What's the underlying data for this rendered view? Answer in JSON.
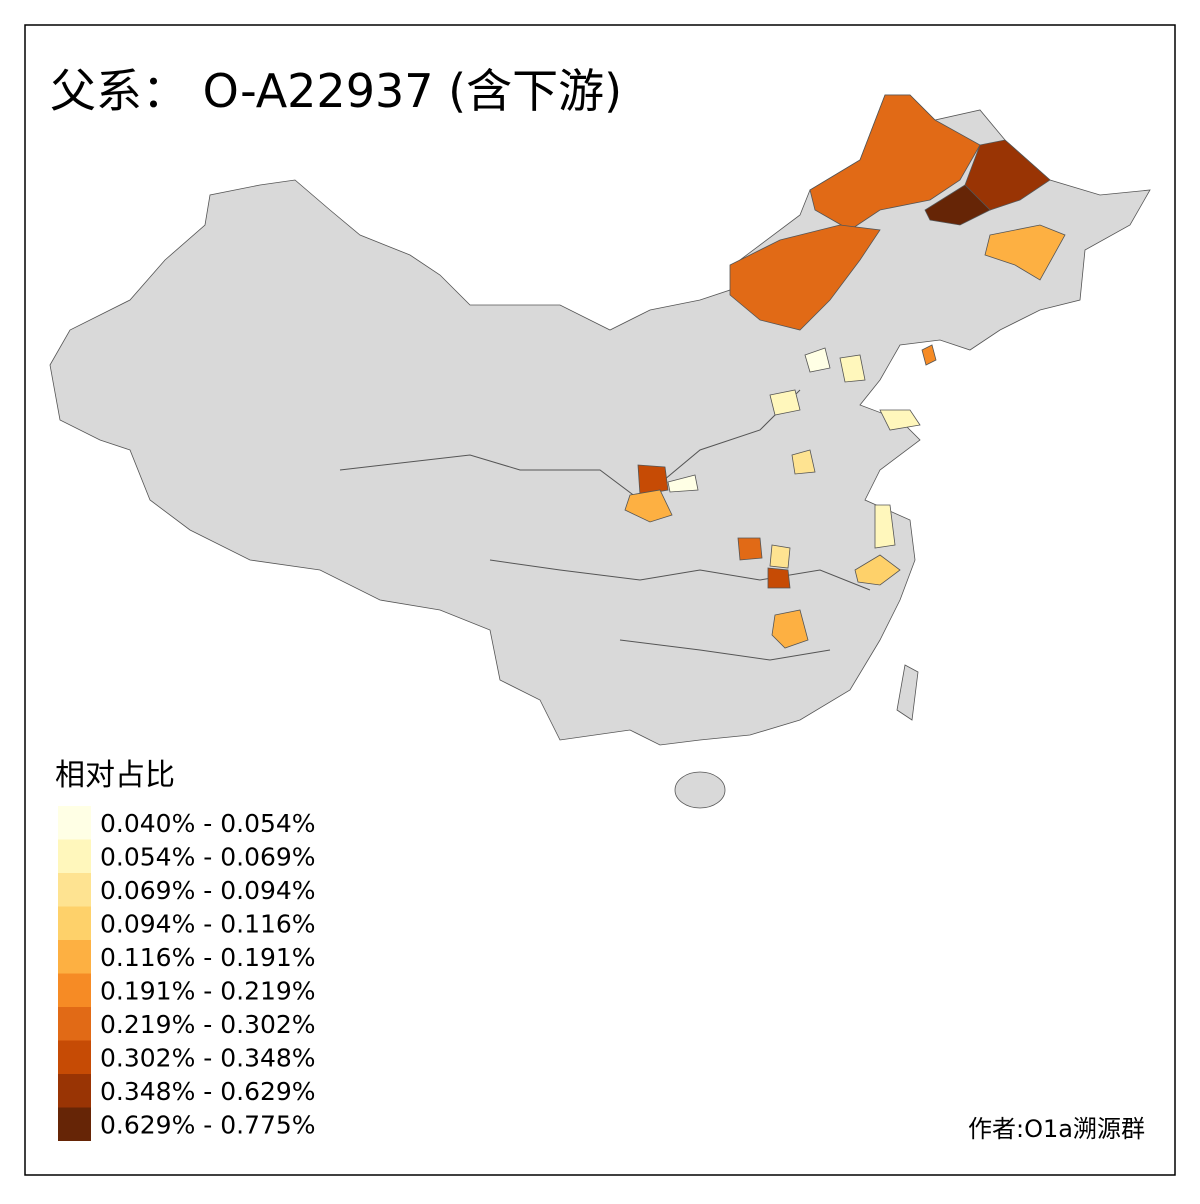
{
  "header": {
    "title": "父系： O-A22937 (含下游)"
  },
  "legend": {
    "title": "相对占比",
    "items": [
      {
        "label": "0.040% - 0.054%",
        "color": "#ffffe5"
      },
      {
        "label": "0.054% - 0.069%",
        "color": "#fff7bc"
      },
      {
        "label": "0.069% - 0.094%",
        "color": "#fee391"
      },
      {
        "label": "0.094% - 0.116%",
        "color": "#fed16a"
      },
      {
        "label": "0.116% - 0.191%",
        "color": "#fdb042"
      },
      {
        "label": "0.191% - 0.219%",
        "color": "#f68b25"
      },
      {
        "label": "0.219% - 0.302%",
        "color": "#e16a16"
      },
      {
        "label": "0.302% - 0.348%",
        "color": "#c64b05"
      },
      {
        "label": "0.348% - 0.629%",
        "color": "#993404"
      },
      {
        "label": "0.629% - 0.775%",
        "color": "#662506"
      }
    ]
  },
  "footer": {
    "author": "作者:O1a溯源群"
  }
}
